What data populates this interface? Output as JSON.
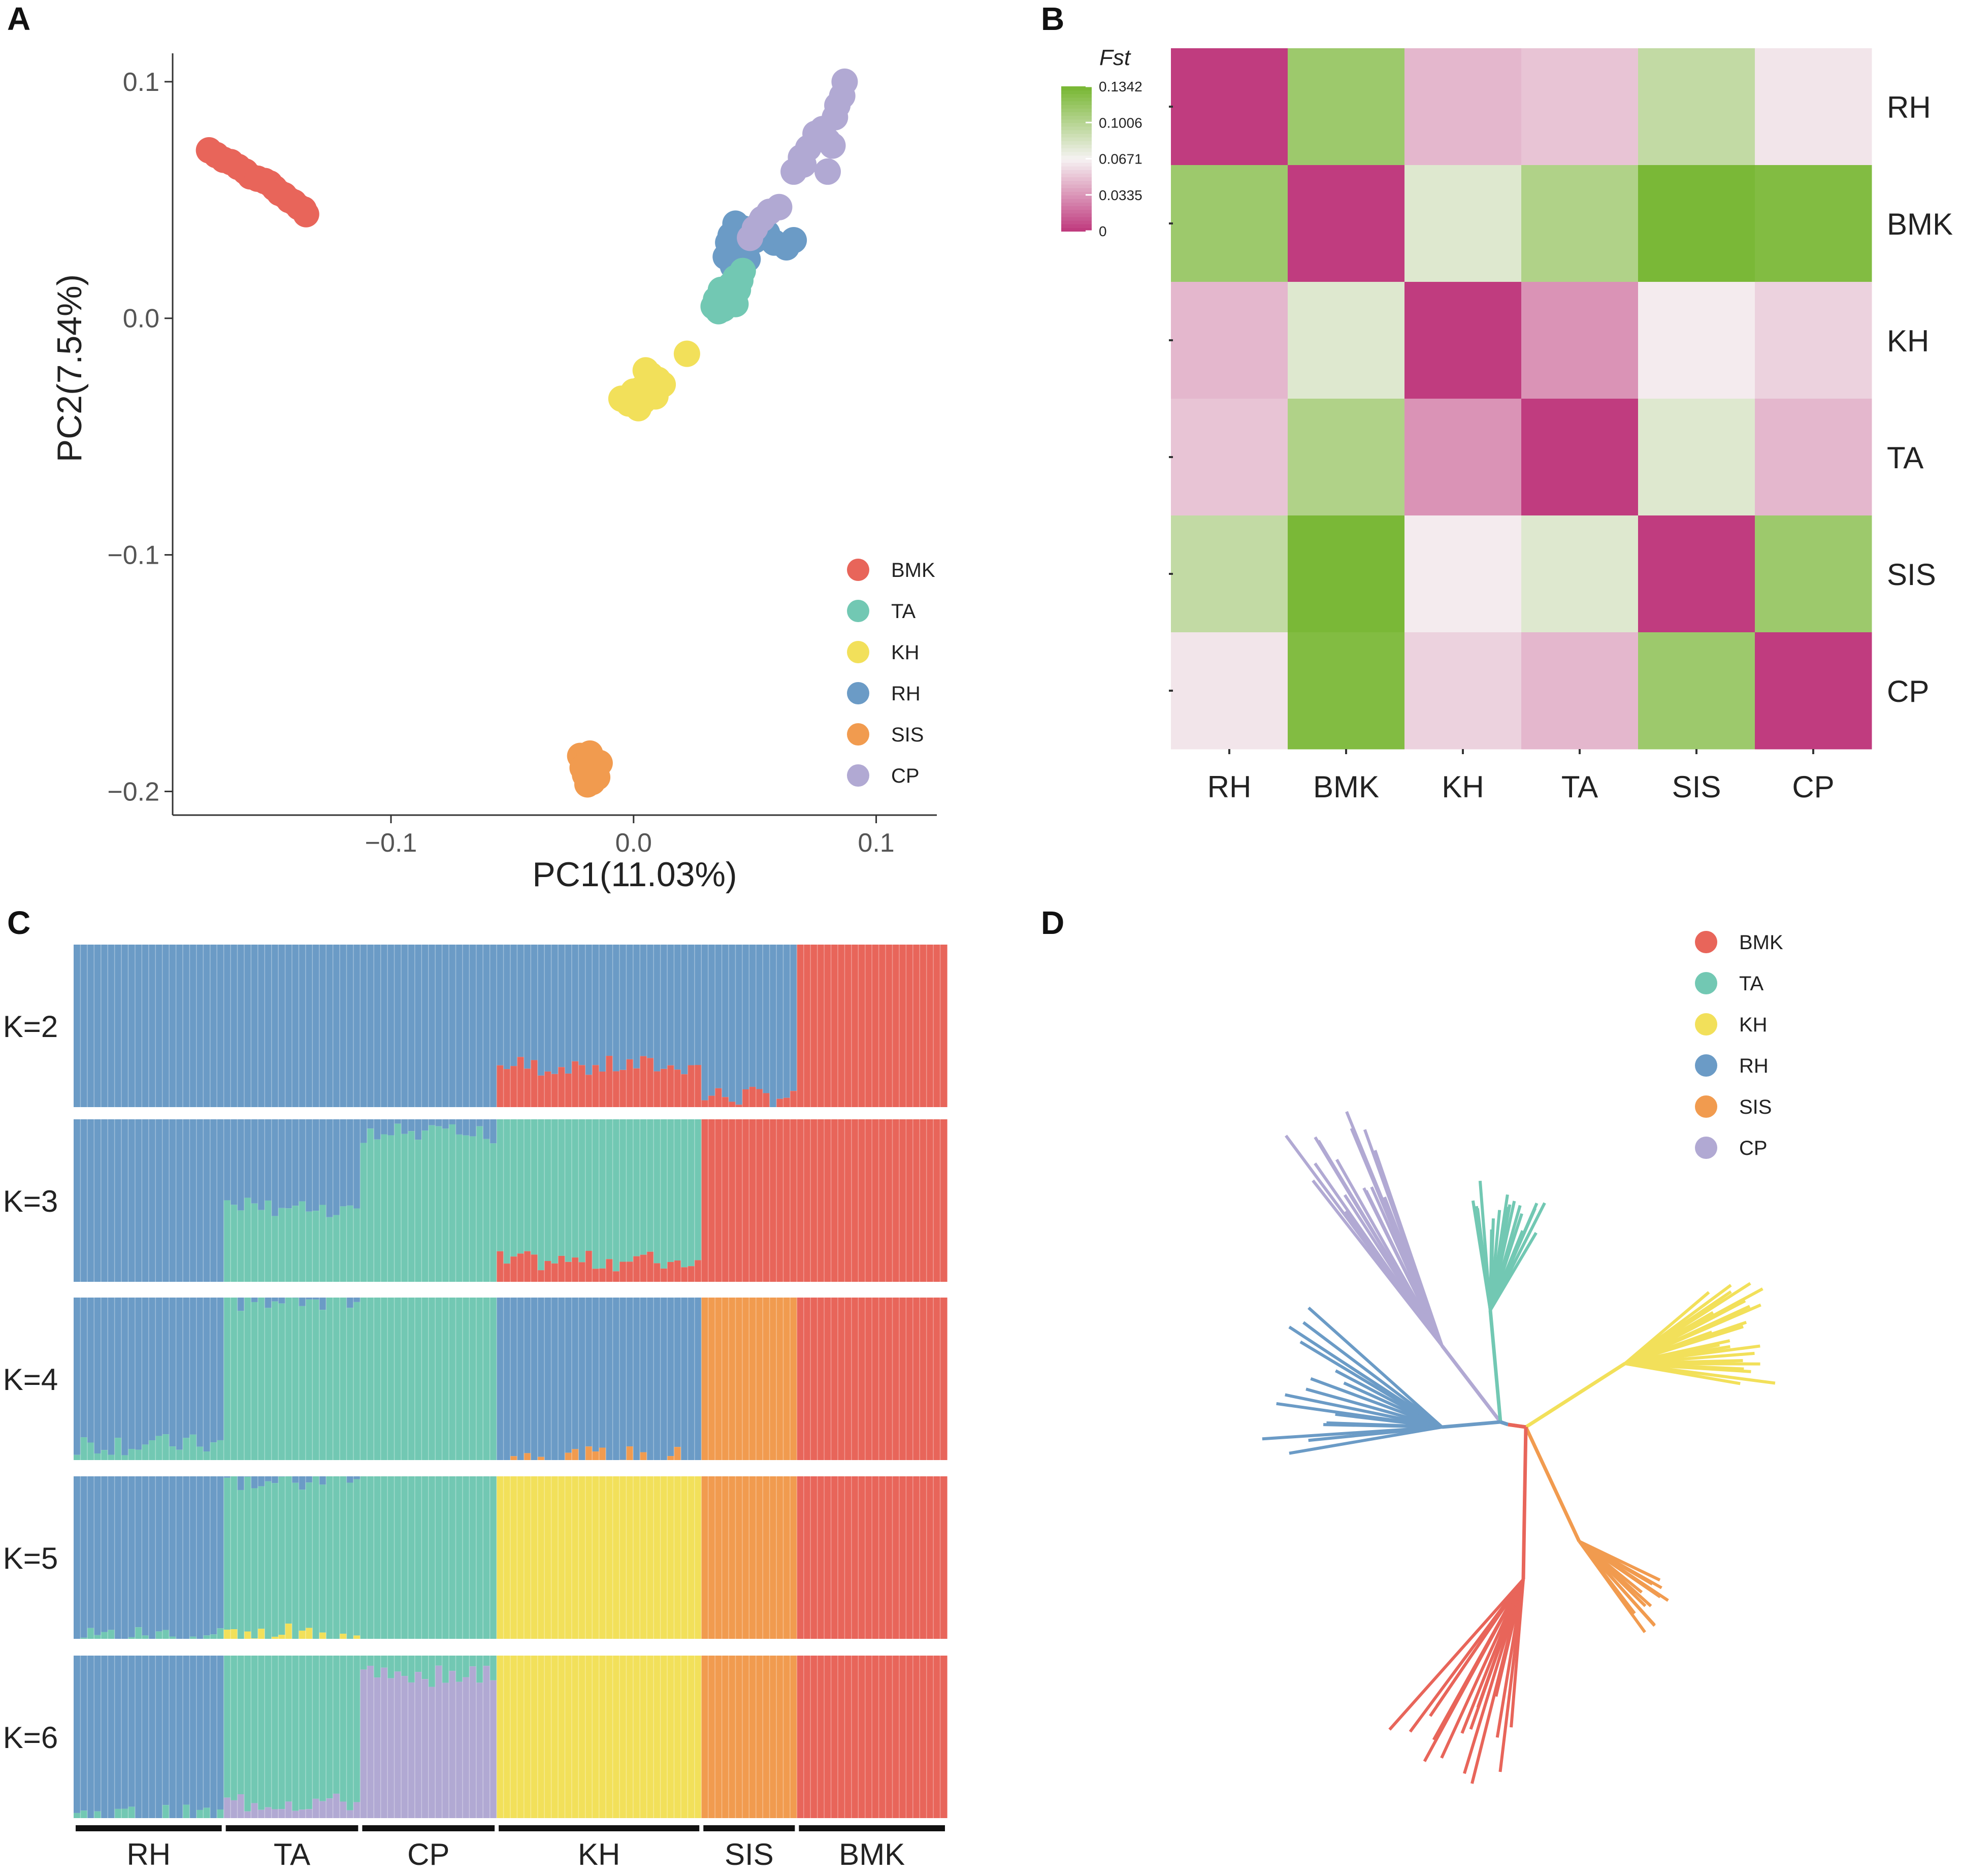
{
  "panel_labels": [
    "A",
    "B",
    "C",
    "D"
  ],
  "colors": {
    "BMK": "#e8655a",
    "TA": "#72c8b3",
    "KH": "#f2e05a",
    "RH": "#6b9bc6",
    "SIS": "#f19b4f",
    "CP": "#b1a9d3",
    "axis": "#333333"
  },
  "chart_data": [
    {
      "panel": "A",
      "type": "scatter",
      "title": "",
      "xlabel": "PC1(11.03%)",
      "ylabel": "PC2(7.54%)",
      "xlim": [
        -0.19,
        0.125
      ],
      "ylim": [
        -0.21,
        0.112
      ],
      "xticks": [
        -0.1,
        0.0,
        0.1
      ],
      "xtick_labels": [
        "−0.1",
        "0.0",
        "0.1"
      ],
      "yticks": [
        0.1,
        0.0,
        -0.1,
        -0.2
      ],
      "ytick_labels": [
        "0.1",
        "0.0",
        "−0.1",
        "−0.2"
      ],
      "legend": [
        "BMK",
        "TA",
        "KH",
        "RH",
        "SIS",
        "CP"
      ],
      "legend_position": "bottom-right",
      "series": [
        {
          "name": "BMK",
          "points": [
            [
              -0.175,
              0.071
            ],
            [
              -0.172,
              0.069
            ],
            [
              -0.169,
              0.067
            ],
            [
              -0.166,
              0.066
            ],
            [
              -0.163,
              0.064
            ],
            [
              -0.16,
              0.062
            ],
            [
              -0.158,
              0.06
            ],
            [
              -0.155,
              0.059
            ],
            [
              -0.152,
              0.058
            ],
            [
              -0.15,
              0.057
            ],
            [
              -0.148,
              0.055
            ],
            [
              -0.146,
              0.053
            ],
            [
              -0.144,
              0.052
            ],
            [
              -0.142,
              0.05
            ],
            [
              -0.14,
              0.049
            ],
            [
              -0.138,
              0.047
            ],
            [
              -0.136,
              0.046
            ],
            [
              -0.135,
              0.044
            ]
          ]
        },
        {
          "name": "RH",
          "points": [
            [
              0.04,
              0.035
            ],
            [
              0.042,
              0.04
            ],
            [
              0.045,
              0.038
            ],
            [
              0.044,
              0.03
            ],
            [
              0.038,
              0.026
            ],
            [
              0.041,
              0.022
            ],
            [
              0.047,
              0.025
            ],
            [
              0.05,
              0.033
            ],
            [
              0.052,
              0.04
            ],
            [
              0.055,
              0.036
            ],
            [
              0.058,
              0.032
            ],
            [
              0.063,
              0.03
            ],
            [
              0.066,
              0.033
            ],
            [
              0.039,
              0.032
            ],
            [
              0.046,
              0.028
            ]
          ]
        },
        {
          "name": "TA",
          "points": [
            [
              0.033,
              0.005
            ],
            [
              0.035,
              0.003
            ],
            [
              0.037,
              0.007
            ],
            [
              0.038,
              0.01
            ],
            [
              0.036,
              0.012
            ],
            [
              0.04,
              0.014
            ],
            [
              0.042,
              0.017
            ],
            [
              0.043,
              0.012
            ],
            [
              0.044,
              0.016
            ],
            [
              0.039,
              0.006
            ],
            [
              0.041,
              0.009
            ],
            [
              0.034,
              0.008
            ],
            [
              0.045,
              0.02
            ],
            [
              0.037,
              0.004
            ],
            [
              0.042,
              0.006
            ]
          ]
        },
        {
          "name": "KH",
          "points": [
            [
              -0.005,
              -0.034
            ],
            [
              -0.002,
              -0.036
            ],
            [
              0.002,
              -0.038
            ],
            [
              0.004,
              -0.035
            ],
            [
              0.006,
              -0.032
            ],
            [
              0.008,
              -0.029
            ],
            [
              0.01,
              -0.026
            ],
            [
              0.007,
              -0.024
            ],
            [
              0.003,
              -0.03
            ],
            [
              0.0,
              -0.031
            ],
            [
              0.009,
              -0.033
            ],
            [
              0.012,
              -0.028
            ],
            [
              0.005,
              -0.022
            ],
            [
              0.022,
              -0.015
            ],
            [
              0.003,
              -0.036
            ]
          ]
        },
        {
          "name": "SIS",
          "points": [
            [
              -0.022,
              -0.185
            ],
            [
              -0.019,
              -0.188
            ],
            [
              -0.016,
              -0.19
            ],
            [
              -0.02,
              -0.193
            ],
            [
              -0.017,
              -0.196
            ],
            [
              -0.014,
              -0.188
            ],
            [
              -0.021,
              -0.19
            ],
            [
              -0.018,
              -0.184
            ],
            [
              -0.015,
              -0.194
            ],
            [
              -0.019,
              -0.197
            ]
          ]
        },
        {
          "name": "CP",
          "points": [
            [
              0.048,
              0.034
            ],
            [
              0.05,
              0.038
            ],
            [
              0.053,
              0.042
            ],
            [
              0.056,
              0.045
            ],
            [
              0.06,
              0.047
            ],
            [
              0.066,
              0.062
            ],
            [
              0.069,
              0.068
            ],
            [
              0.072,
              0.072
            ],
            [
              0.075,
              0.078
            ],
            [
              0.078,
              0.08
            ],
            [
              0.08,
              0.075
            ],
            [
              0.082,
              0.073
            ],
            [
              0.084,
              0.09
            ],
            [
              0.086,
              0.094
            ],
            [
              0.087,
              0.1
            ],
            [
              0.083,
              0.085
            ],
            [
              0.08,
              0.062
            ],
            [
              0.07,
              0.065
            ]
          ]
        }
      ]
    },
    {
      "panel": "B",
      "type": "heatmap",
      "title": "",
      "legend_title": "Fst",
      "colorbar_ticks": [
        "0.1342",
        "0.1006",
        "0.0671",
        "0.0335",
        "0"
      ],
      "colorbar_range": [
        0,
        0.1342
      ],
      "rows": [
        "RH",
        "BMK",
        "KH",
        "TA",
        "SIS",
        "CP"
      ],
      "cols": [
        "RH",
        "BMK",
        "KH",
        "TA",
        "SIS",
        "CP"
      ],
      "values": [
        [
          0,
          0.115,
          0.045,
          0.05,
          0.095,
          0.062
        ],
        [
          0.115,
          0,
          0.08,
          0.105,
          0.134,
          0.13
        ],
        [
          0.045,
          0.08,
          0,
          0.032,
          0.064,
          0.055
        ],
        [
          0.05,
          0.105,
          0.032,
          0,
          0.08,
          0.045
        ],
        [
          0.095,
          0.134,
          0.064,
          0.08,
          0,
          0.115
        ],
        [
          0.062,
          0.13,
          0.055,
          0.045,
          0.115,
          0
        ]
      ]
    },
    {
      "panel": "C",
      "type": "bar",
      "subtype": "stacked-admixture",
      "k_labels": [
        "K=2",
        "K=3",
        "K=4",
        "K=5",
        "K=6"
      ],
      "population_order": [
        "RH",
        "TA",
        "CP",
        "KH",
        "SIS",
        "BMK"
      ],
      "population_sizes": [
        22,
        20,
        20,
        30,
        14,
        22
      ],
      "population_labels": [
        "RH",
        "TA",
        "CP",
        "KH",
        "SIS",
        "BMK"
      ],
      "cluster_colors": {
        "K=2": [
          "#6b9bc6",
          "#e8655a"
        ],
        "K=3": [
          "#6b9bc6",
          "#72c8b3",
          "#e8655a"
        ],
        "K=4": [
          "#6b9bc6",
          "#72c8b3",
          "#f19b4f",
          "#e8655a"
        ],
        "K=5": [
          "#6b9bc6",
          "#72c8b3",
          "#f2e05a",
          "#f19b4f",
          "#e8655a"
        ],
        "K=6": [
          "#6b9bc6",
          "#72c8b3",
          "#b1a9d3",
          "#f2e05a",
          "#f19b4f",
          "#e8655a"
        ]
      },
      "mean_ancestry": {
        "K=2": {
          "RH": [
            1.0,
            0.0
          ],
          "TA": [
            1.0,
            0.0
          ],
          "CP": [
            1.0,
            0.0
          ],
          "KH": [
            0.75,
            0.25
          ],
          "SIS": [
            0.93,
            0.07
          ],
          "BMK": [
            0.0,
            1.0
          ]
        },
        "K=3": {
          "RH": [
            1.0,
            0.0,
            0.0
          ],
          "TA": [
            0.55,
            0.45,
            0.0
          ],
          "CP": [
            0.1,
            0.9,
            0.0
          ],
          "KH": [
            0.0,
            0.87,
            0.13
          ],
          "SIS": [
            0.0,
            0.0,
            1.0
          ],
          "BMK": [
            0.0,
            0.0,
            1.0
          ]
        },
        "K=4": {
          "RH": [
            0.9,
            0.1,
            0.0,
            0.0
          ],
          "TA": [
            0.02,
            0.98,
            0.0,
            0.0
          ],
          "CP": [
            0.0,
            1.0,
            0.0,
            0.0
          ],
          "KH": [
            0.98,
            0.0,
            0.02,
            0.0
          ],
          "SIS": [
            0.0,
            0.0,
            1.0,
            0.0
          ],
          "BMK": [
            0.0,
            0.0,
            0.0,
            1.0
          ]
        },
        "K=5": {
          "RH": [
            0.98,
            0.02,
            0.0,
            0.0,
            0.0
          ],
          "TA": [
            0.02,
            0.96,
            0.02,
            0.0,
            0.0
          ],
          "CP": [
            0.0,
            1.0,
            0.0,
            0.0,
            0.0
          ],
          "KH": [
            0.0,
            0.0,
            1.0,
            0.0,
            0.0
          ],
          "SIS": [
            0.0,
            0.0,
            0.0,
            1.0,
            0.0
          ],
          "BMK": [
            0.0,
            0.0,
            0.0,
            0.0,
            1.0
          ]
        },
        "K=6": {
          "RH": [
            0.98,
            0.02,
            0.0,
            0.0,
            0.0,
            0.0
          ],
          "TA": [
            0.0,
            0.9,
            0.1,
            0.0,
            0.0,
            0.0
          ],
          "CP": [
            0.0,
            0.12,
            0.88,
            0.0,
            0.0,
            0.0
          ],
          "KH": [
            0.0,
            0.0,
            0.0,
            1.0,
            0.0,
            0.0
          ],
          "SIS": [
            0.0,
            0.0,
            0.0,
            0.0,
            1.0,
            0.0
          ],
          "BMK": [
            0.0,
            0.0,
            0.0,
            0.0,
            0.0,
            1.0
          ]
        }
      }
    },
    {
      "panel": "D",
      "type": "scatter",
      "subtype": "unrooted-tree",
      "legend": [
        "BMK",
        "TA",
        "KH",
        "RH",
        "SIS",
        "CP"
      ],
      "legend_position": "top-right",
      "clades": [
        "CP",
        "TA",
        "KH",
        "RH",
        "SIS",
        "BMK"
      ]
    }
  ]
}
